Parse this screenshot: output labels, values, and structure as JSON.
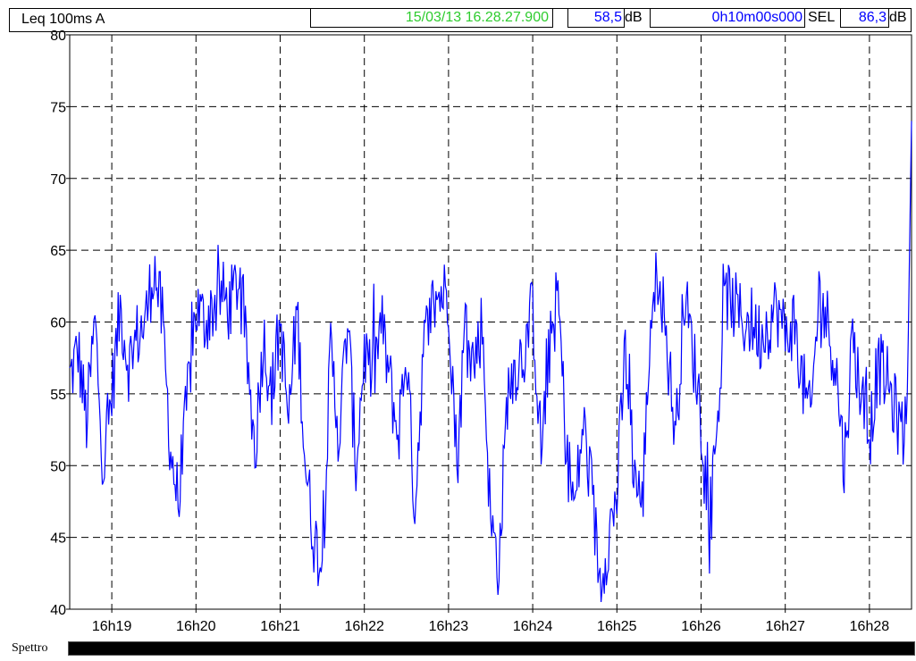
{
  "header": {
    "measure_label": "Leq 100ms  A",
    "cursor_time": "15/03/13 16.28.27.900",
    "cursor_value": "58,5",
    "unit1": "dB",
    "duration": "0h10m00s000",
    "sel_label": "SEL",
    "sel_value": "86,3",
    "unit2": "dB",
    "colors": {
      "cursor_time": "#2ecc2e",
      "values": "#0000ff"
    }
  },
  "footer": {
    "label": "Spettro"
  },
  "chart_data": {
    "type": "line",
    "title": "",
    "xlabel": "",
    "ylabel": "",
    "ylim": [
      40,
      80
    ],
    "y_ticks": [
      40,
      45,
      50,
      55,
      60,
      65,
      70,
      75,
      80
    ],
    "x_ticks": [
      "16h19",
      "16h20",
      "16h21",
      "16h22",
      "16h23",
      "16h24",
      "16h25",
      "16h26",
      "16h27",
      "16h28"
    ],
    "x_unit": "minutes after 16h00",
    "xlim": [
      18.5,
      28.5
    ],
    "grid": true,
    "line_color": "#0000ff",
    "series": [
      {
        "x": [
          18.5,
          18.6,
          18.7,
          18.8,
          18.9,
          19.0,
          19.1,
          19.2,
          19.3,
          19.4,
          19.5,
          19.6,
          19.7,
          19.8,
          19.9,
          20.0,
          20.1,
          20.2,
          20.3,
          20.4,
          20.5,
          20.6,
          20.7,
          20.8,
          20.9,
          21.0,
          21.1,
          21.2,
          21.3,
          21.4,
          21.5,
          21.6,
          21.7,
          21.8,
          21.9,
          22.0,
          22.1,
          22.2,
          22.3,
          22.4,
          22.5,
          22.6,
          22.7,
          22.8,
          22.9,
          23.0,
          23.1,
          23.2,
          23.3,
          23.4,
          23.5,
          23.6,
          23.7,
          23.8,
          23.9,
          24.0,
          24.1,
          24.2,
          24.3,
          24.4,
          24.5,
          24.6,
          24.7,
          24.8,
          24.9,
          25.0,
          25.1,
          25.2,
          25.3,
          25.4,
          25.5,
          25.6,
          25.7,
          25.8,
          25.9,
          26.0,
          26.1,
          26.2,
          26.3,
          26.4,
          26.5,
          26.6,
          26.7,
          26.8,
          26.9,
          27.0,
          27.1,
          27.2,
          27.3,
          27.4,
          27.5,
          27.6,
          27.7,
          27.8,
          27.9,
          28.0,
          28.1,
          28.2,
          28.3,
          28.4,
          28.45,
          28.5
        ],
        "values": [
          56,
          58,
          53,
          60,
          50,
          55,
          61,
          57,
          59,
          60,
          64,
          60,
          51,
          47,
          55,
          61,
          60,
          61,
          62,
          61,
          63,
          58,
          51,
          59,
          55,
          60,
          53,
          61,
          50,
          45,
          43,
          58,
          52,
          60,
          50,
          58,
          56,
          60,
          56,
          52,
          58,
          47,
          58,
          61,
          62,
          62,
          50,
          60,
          57,
          60,
          46,
          43,
          55,
          57,
          58,
          61,
          51,
          58,
          62,
          51,
          47,
          53,
          48,
          42,
          45,
          48,
          58,
          50,
          47,
          60,
          64,
          58,
          52,
          62,
          58,
          54,
          45,
          54,
          62,
          61,
          60,
          60,
          59,
          60,
          61,
          59,
          60,
          56,
          53,
          62,
          60,
          57,
          50,
          59,
          55,
          52,
          57,
          56,
          54,
          52,
          55,
          74
        ]
      }
    ]
  }
}
